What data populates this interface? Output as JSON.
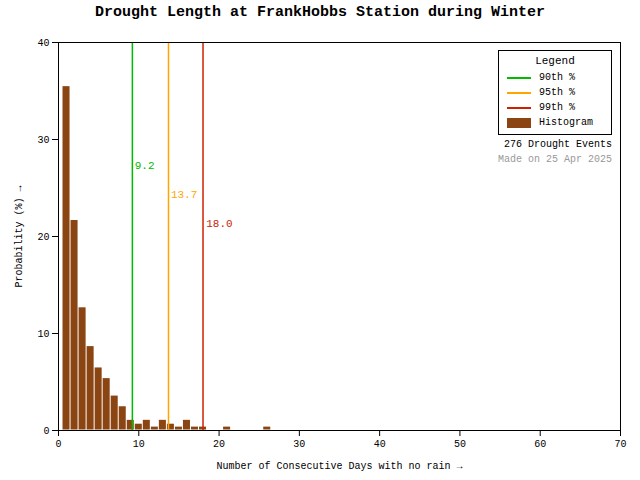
{
  "chart_data": {
    "type": "histogram",
    "title": "Drought Length at FrankHobbs Station during Winter",
    "xlabel": "Number of Consecutive Days with no rain",
    "ylabel": "Probability (%)",
    "xlim": [
      0,
      70
    ],
    "ylim": [
      0,
      40
    ],
    "xticks": [
      0,
      10,
      20,
      30,
      40,
      50,
      60,
      70
    ],
    "yticks": [
      0,
      10,
      20,
      30,
      40
    ],
    "grid": false,
    "legend": "upper right",
    "legend_title": "Legend",
    "bins": [
      0.5,
      1.5,
      2.5,
      3.5,
      4.5,
      5.5,
      6.5,
      7.5,
      8.5,
      9.5,
      10.5,
      11.5,
      12.5,
      13.5,
      14.5,
      15.5,
      16.5,
      17.5,
      18.5,
      19.5,
      20.5,
      21.5,
      22.5,
      23.5,
      24.5,
      25.5,
      26.5,
      27.5,
      28.5,
      29.5,
      30.5,
      31.5,
      32.5,
      33.5,
      34.5,
      35.5,
      36.5,
      37.5,
      38.5,
      39.5,
      40.5,
      41.5,
      42.5,
      43.5,
      44.5,
      45.5,
      46.5,
      47.5,
      48.5,
      49.5,
      50.5,
      51.5,
      52.5,
      53.5,
      54.5,
      55.5,
      56.5,
      57.5,
      58.5,
      59.5,
      60.5
    ],
    "series": [
      {
        "name": "Histogram",
        "color": "#8B4513",
        "values": [
          35.5,
          21.7,
          12.7,
          8.7,
          6.5,
          5.4,
          3.6,
          2.5,
          1.1,
          0.7,
          1.1,
          0.4,
          1.1,
          0.7,
          0.4,
          1.1,
          0.4,
          0.4,
          0.0,
          0.0,
          0.4,
          0.0,
          0.0,
          0.0,
          0.0,
          0.4,
          0.0,
          0.0,
          0.0,
          0.0,
          0.0,
          0.0,
          0.0,
          0.0,
          0.0,
          0.0,
          0.0,
          0.0,
          0.0,
          0.0,
          0.0,
          0.0,
          0.0,
          0.0,
          0.0,
          0.0,
          0.0,
          0.0,
          0.0,
          0.0,
          0.0,
          0.0,
          0.0,
          0.0,
          0.0,
          0.0,
          0.0,
          0.0,
          0.0,
          0.0
        ]
      }
    ],
    "percentiles": [
      {
        "name": "90th %",
        "value": 9.2,
        "color": "#00BB00"
      },
      {
        "name": "95th %",
        "value": 13.7,
        "color": "#FFA500"
      },
      {
        "name": "99th %",
        "value": 18.0,
        "color": "#CC2200"
      }
    ],
    "annotations": [
      {
        "text": "9.2",
        "x": 9.5,
        "y": 27.0,
        "color": "#00BB00"
      },
      {
        "text": "13.7",
        "x": 14.0,
        "y": 24.0,
        "color": "#FFA500"
      },
      {
        "text": "18.0",
        "x": 18.4,
        "y": 21.0,
        "color": "#CC2200"
      }
    ],
    "legend_notes": [
      {
        "text": "276 Drought Events"
      },
      {
        "text": "Made on 25 Apr 2025",
        "color": "#999999"
      }
    ]
  }
}
